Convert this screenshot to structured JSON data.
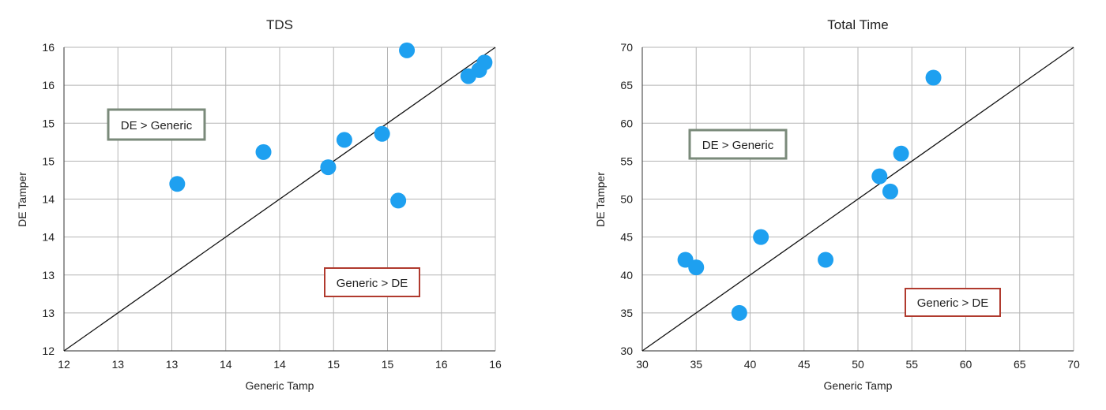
{
  "chart_data": [
    {
      "type": "scatter",
      "title": "TDS",
      "xlabel": "Generic Tamp",
      "ylabel": "DE Tamper",
      "xlim": [
        12,
        16
      ],
      "ylim": [
        12,
        16
      ],
      "x_ticks": [
        12,
        12.5,
        13,
        13.5,
        14,
        14.5,
        15,
        15.5,
        16
      ],
      "x_tick_labels": [
        "12",
        "13",
        "13",
        "14",
        "14",
        "15",
        "15",
        "16",
        "16"
      ],
      "y_ticks": [
        12,
        12.5,
        13,
        13.5,
        14,
        14.5,
        15,
        15.5,
        16
      ],
      "y_tick_labels": [
        "12",
        "13",
        "13",
        "14",
        "14",
        "15",
        "15",
        "16",
        "16"
      ],
      "grid": true,
      "reference_line": "y = x",
      "points": [
        {
          "x": 13.05,
          "y": 14.2
        },
        {
          "x": 13.85,
          "y": 14.62
        },
        {
          "x": 14.45,
          "y": 14.42
        },
        {
          "x": 14.6,
          "y": 14.78
        },
        {
          "x": 14.95,
          "y": 14.86
        },
        {
          "x": 15.1,
          "y": 13.98
        },
        {
          "x": 15.18,
          "y": 15.96
        },
        {
          "x": 15.75,
          "y": 15.62
        },
        {
          "x": 15.85,
          "y": 15.7
        },
        {
          "x": 15.9,
          "y": 15.8
        }
      ],
      "annotations": [
        {
          "text": "DE > Generic",
          "style": "gray"
        },
        {
          "text": "Generic > DE",
          "style": "red"
        }
      ],
      "colors": {
        "point": "#1ea0f0",
        "gray_box": "#7a8a7a",
        "red_box": "#b03a2e"
      }
    },
    {
      "type": "scatter",
      "title": "Total Time",
      "xlabel": "Generic Tamp",
      "ylabel": "DE Tamper",
      "xlim": [
        30,
        70
      ],
      "ylim": [
        30,
        70
      ],
      "x_ticks": [
        30,
        35,
        40,
        45,
        50,
        55,
        60,
        65,
        70
      ],
      "x_tick_labels": [
        "30",
        "35",
        "40",
        "45",
        "50",
        "55",
        "60",
        "65",
        "70"
      ],
      "y_ticks": [
        30,
        35,
        40,
        45,
        50,
        55,
        60,
        65,
        70
      ],
      "y_tick_labels": [
        "30",
        "35",
        "40",
        "45",
        "50",
        "55",
        "60",
        "65",
        "70"
      ],
      "grid": true,
      "reference_line": "y = x",
      "points": [
        {
          "x": 34,
          "y": 42
        },
        {
          "x": 35,
          "y": 41
        },
        {
          "x": 39,
          "y": 35
        },
        {
          "x": 41,
          "y": 45
        },
        {
          "x": 47,
          "y": 42
        },
        {
          "x": 52,
          "y": 53
        },
        {
          "x": 53,
          "y": 51
        },
        {
          "x": 54,
          "y": 56
        },
        {
          "x": 57,
          "y": 66
        }
      ],
      "annotations": [
        {
          "text": "DE > Generic",
          "style": "gray"
        },
        {
          "text": "Generic > DE",
          "style": "red"
        }
      ],
      "colors": {
        "point": "#1ea0f0",
        "gray_box": "#7a8a7a",
        "red_box": "#b03a2e"
      }
    }
  ]
}
